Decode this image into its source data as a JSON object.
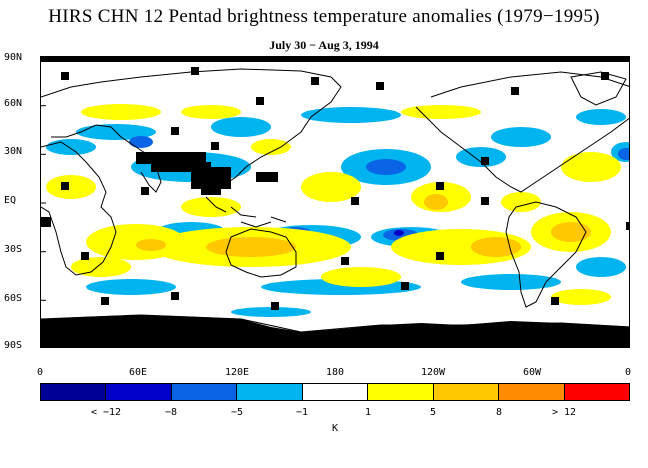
{
  "title": "HIRS CHN 12 Pentad brightness temperature anomalies (1979−1995)",
  "subtitle": "July 30 − Aug 3, 1994",
  "lat_labels": [
    "90N",
    "60N",
    "30N",
    "EQ",
    "30S",
    "60S",
    "90S"
  ],
  "lon_labels": [
    "0",
    "60E",
    "120E",
    "180",
    "120W",
    "60W",
    "0"
  ],
  "legend": {
    "labels": [
      "< −12",
      "−8",
      "−5",
      "−1",
      "1",
      "5",
      "8",
      "> 12"
    ],
    "unit": "K",
    "colors": [
      "#000096",
      "#0000c8",
      "#0a64e6",
      "#00b4f0",
      "#ffffff",
      "#ffff00",
      "#ffc800",
      "#ff8c00",
      "#ff0000"
    ]
  },
  "colors": {
    "land_outline": "#000000",
    "missing": "#000000"
  }
}
